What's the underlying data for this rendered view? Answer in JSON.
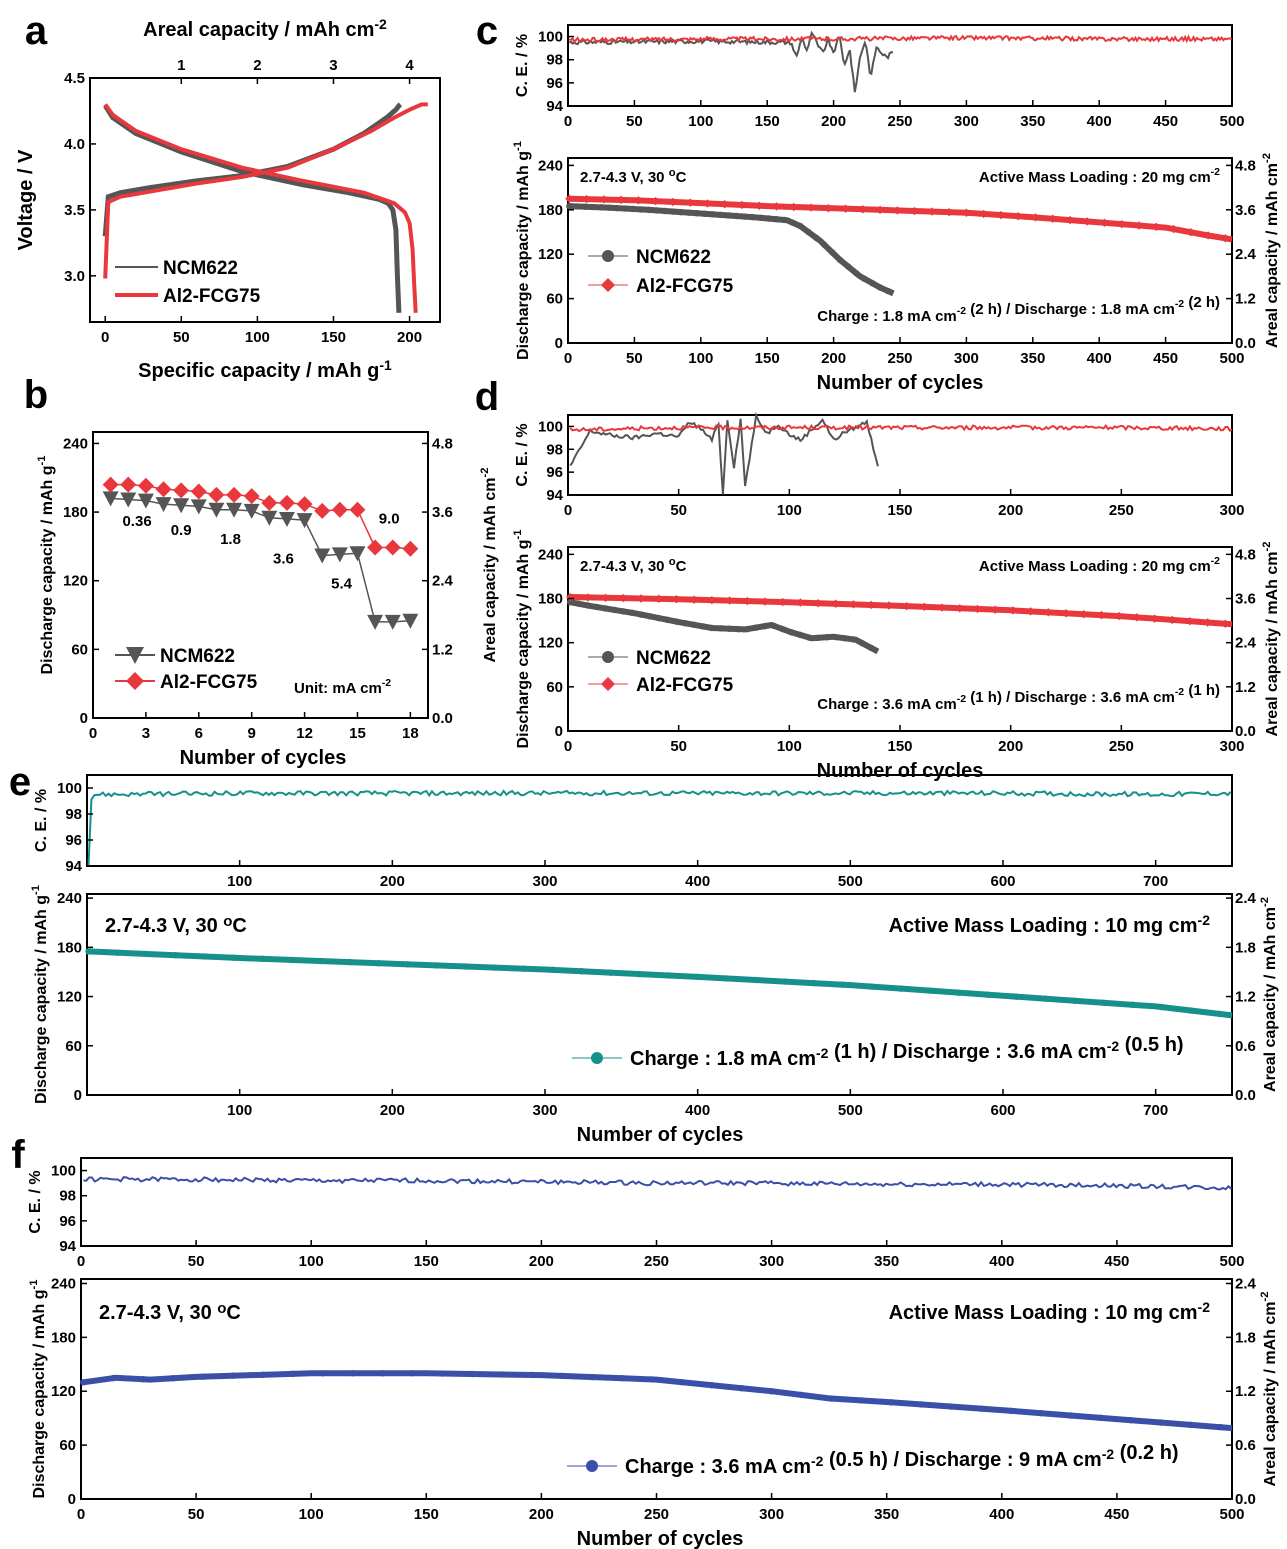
{
  "colors": {
    "ncm": "#555555",
    "al": "#e8383d",
    "teal": "#16908a",
    "blue": "#3a4fa8",
    "axis": "#000000"
  },
  "panels": {
    "a": "a",
    "b": "b",
    "c": "c",
    "d": "d",
    "e": "e",
    "f": "f"
  },
  "chart_data": [
    {
      "id": "a",
      "type": "line",
      "xlabel": "Specific capacity / mAh g-1",
      "x2label": "Areal capacity / mAh cm-2",
      "ylabel": "Voltage / V",
      "xlim": [
        -10,
        220
      ],
      "ylim": [
        2.65,
        4.5
      ],
      "x2lim": [
        -0.2,
        4.4
      ],
      "xticks": [
        0,
        50,
        100,
        150,
        200
      ],
      "yticks": [
        3.0,
        3.5,
        4.0,
        4.5
      ],
      "x2ticks": [
        1,
        2,
        3,
        4
      ],
      "legend": "bottom-left",
      "series": [
        {
          "name": "NCM622",
          "color": "ncm",
          "curves": [
            {
              "x": [
                0,
                2,
                10,
                30,
                60,
                90,
                120,
                150,
                170,
                185,
                191,
                193,
                194
              ],
              "y": [
                3.3,
                3.6,
                3.63,
                3.67,
                3.72,
                3.76,
                3.83,
                3.96,
                4.08,
                4.2,
                4.26,
                4.29,
                4.3
              ]
            },
            {
              "x": [
                0,
                5,
                20,
                50,
                90,
                130,
                160,
                180,
                186,
                189,
                191,
                192,
                193
              ],
              "y": [
                4.29,
                4.2,
                4.08,
                3.94,
                3.79,
                3.69,
                3.63,
                3.58,
                3.55,
                3.5,
                3.35,
                3.0,
                2.72
              ]
            }
          ]
        },
        {
          "name": "Al2-FCG75",
          "color": "al",
          "curves": [
            {
              "x": [
                0,
                2,
                10,
                30,
                60,
                90,
                120,
                150,
                175,
                190,
                200,
                208,
                212
              ],
              "y": [
                2.98,
                3.56,
                3.6,
                3.64,
                3.7,
                3.75,
                3.82,
                3.96,
                4.1,
                4.2,
                4.26,
                4.3,
                4.3
              ]
            },
            {
              "x": [
                0,
                5,
                20,
                50,
                90,
                130,
                170,
                190,
                197,
                200,
                202,
                203,
                204
              ],
              "y": [
                4.3,
                4.22,
                4.1,
                3.96,
                3.82,
                3.72,
                3.63,
                3.55,
                3.48,
                3.4,
                3.2,
                2.95,
                2.72
              ]
            }
          ]
        }
      ]
    },
    {
      "id": "b",
      "type": "line",
      "xlabel": "Number of cycles",
      "ylabel": "Discharge capacity / mAh g-1",
      "y2label": "Areal capacity / mAh cm-2",
      "xlim": [
        0,
        19
      ],
      "ylim": [
        0,
        250
      ],
      "y2lim": [
        0,
        5
      ],
      "xticks": [
        0,
        3,
        6,
        9,
        12,
        15,
        18
      ],
      "yticks": [
        0,
        60,
        120,
        180,
        240
      ],
      "y2ticks": [
        0.0,
        1.2,
        2.4,
        3.6,
        4.8
      ],
      "legend": "bottom-left",
      "unit_note": "Unit: mA cm-2",
      "rate_labels": [
        {
          "text": "0.36",
          "x": 2.5,
          "y": 168
        },
        {
          "text": "0.9",
          "x": 5,
          "y": 160
        },
        {
          "text": "1.8",
          "x": 7.8,
          "y": 152
        },
        {
          "text": "3.6",
          "x": 10.8,
          "y": 135
        },
        {
          "text": "5.4",
          "x": 14.1,
          "y": 113
        },
        {
          "text": "9.0",
          "x": 16.8,
          "y": 170
        }
      ],
      "series": [
        {
          "name": "NCM622",
          "color": "ncm",
          "marker": "triangle-down",
          "x": [
            1,
            2,
            3,
            4,
            5,
            6,
            7,
            8,
            9,
            10,
            11,
            12,
            13,
            14,
            15,
            16,
            17,
            18
          ],
          "y": [
            192,
            191,
            190,
            187,
            186,
            185,
            182,
            182,
            181,
            175,
            174,
            173,
            142,
            143,
            144,
            84,
            84,
            85
          ]
        },
        {
          "name": "Al2-FCG75",
          "color": "al",
          "marker": "diamond",
          "x": [
            1,
            2,
            3,
            4,
            5,
            6,
            7,
            8,
            9,
            10,
            11,
            12,
            13,
            14,
            15,
            16,
            17,
            18
          ],
          "y": [
            204,
            204,
            203,
            200,
            199,
            198,
            195,
            195,
            194,
            188,
            188,
            187,
            181,
            182,
            182,
            149,
            149,
            148
          ]
        }
      ]
    },
    {
      "id": "c",
      "type": "line",
      "xlabel": "Number of cycles",
      "ylabel": "Discharge capacity / mAh g-1",
      "y2label": "Areal capacity / mAh cm-2",
      "celabel": "C. E. / %",
      "xlim": [
        0,
        500
      ],
      "xticks": [
        0,
        50,
        100,
        150,
        200,
        250,
        300,
        350,
        400,
        450,
        500
      ],
      "ylim": [
        0,
        250
      ],
      "yticks": [
        0,
        60,
        120,
        180,
        240
      ],
      "y2ticks": [
        0.0,
        1.2,
        2.4,
        3.6,
        4.8
      ],
      "celim": [
        94,
        101
      ],
      "ceticks": [
        94,
        96,
        98,
        100
      ],
      "conditions": "2.7-4.3 V, 30 oC",
      "loading": "Active Mass Loading : 20 mg cm-2",
      "protocol": "Charge : 1.8 mA cm-2 (2 h) / Discharge : 1.8 mA cm-2 (2 h)",
      "legend": "center-left",
      "series": [
        {
          "name": "NCM622",
          "color": "ncm",
          "marker": "circle",
          "x": [
            1,
            30,
            60,
            100,
            140,
            165,
            175,
            190,
            205,
            220,
            235,
            245
          ],
          "y": [
            185,
            183,
            180,
            175,
            170,
            166,
            158,
            138,
            112,
            90,
            75,
            67
          ],
          "ce_x": [
            1,
            100,
            168,
            172,
            176,
            180,
            184,
            188,
            192,
            196,
            200,
            204,
            208,
            212,
            216,
            220,
            224,
            228,
            232,
            236,
            240,
            244
          ],
          "ce": [
            99.5,
            99.6,
            99.5,
            98.2,
            99.9,
            98.8,
            100.4,
            99.2,
            98.6,
            99.8,
            98.4,
            100.3,
            97.4,
            99.0,
            95.2,
            98.3,
            99.7,
            96.4,
            99.1,
            98.6,
            98.2,
            98.6
          ]
        },
        {
          "name": "Al2-FCG75",
          "color": "al",
          "marker": "diamond",
          "x": [
            1,
            50,
            100,
            150,
            200,
            250,
            300,
            350,
            400,
            450,
            480,
            500
          ],
          "y": [
            195,
            193,
            189,
            185,
            182,
            179,
            176,
            170,
            163,
            156,
            146,
            140
          ],
          "ce_x": [
            1,
            100,
            200,
            300,
            400,
            500
          ],
          "ce": [
            99.7,
            99.8,
            99.8,
            99.9,
            99.8,
            99.8
          ]
        }
      ]
    },
    {
      "id": "d",
      "type": "line",
      "xlabel": "Number of cycles",
      "ylabel": "Discharge capacity / mAh g-1",
      "y2label": "Areal capacity / mAh cm-2",
      "celabel": "C. E. / %",
      "xlim": [
        0,
        300
      ],
      "xticks": [
        0,
        50,
        100,
        150,
        200,
        250,
        300
      ],
      "ylim": [
        0,
        250
      ],
      "yticks": [
        0,
        60,
        120,
        180,
        240
      ],
      "y2ticks": [
        0.0,
        1.2,
        2.4,
        3.6,
        4.8
      ],
      "celim": [
        94,
        101
      ],
      "ceticks": [
        94,
        96,
        98,
        100
      ],
      "conditions": "2.7-4.3 V, 30 oC",
      "loading": "Active Mass Loading : 20 mg cm-2",
      "protocol": "Charge : 3.6 mA cm-2 (1 h) / Discharge : 3.6 mA cm-2 (1 h)",
      "legend": "center-left",
      "series": [
        {
          "name": "NCM622",
          "color": "ncm",
          "marker": "circle",
          "x": [
            1,
            10,
            30,
            50,
            65,
            80,
            92,
            100,
            110,
            120,
            130,
            140
          ],
          "y": [
            175,
            170,
            160,
            148,
            140,
            138,
            144,
            135,
            126,
            128,
            124,
            108
          ],
          "ce_x": [
            1,
            10,
            20,
            30,
            40,
            50,
            55,
            60,
            65,
            68,
            70,
            72,
            75,
            78,
            80,
            85,
            90,
            95,
            100,
            105,
            110,
            115,
            120,
            125,
            130,
            135,
            140,
            142
          ],
          "ce": [
            96.5,
            99.6,
            99.2,
            99.0,
            99.4,
            99.1,
            100.4,
            99.8,
            98.8,
            100.3,
            94.0,
            100.6,
            96.5,
            100.6,
            94.8,
            100.8,
            99.4,
            100.2,
            99.3,
            98.8,
            99.7,
            100.6,
            98.8,
            99.5,
            99.9,
            100.4,
            96.6,
            95.8
          ]
        },
        {
          "name": "Al2-FCG75",
          "color": "al",
          "marker": "diamond",
          "x": [
            1,
            50,
            100,
            150,
            200,
            250,
            300
          ],
          "y": [
            182,
            179,
            175,
            170,
            164,
            156,
            145
          ],
          "ce_x": [
            1,
            50,
            100,
            150,
            200,
            250,
            300
          ],
          "ce": [
            99.7,
            99.9,
            99.9,
            99.9,
            99.9,
            99.9,
            99.8
          ]
        }
      ]
    },
    {
      "id": "e",
      "type": "line",
      "xlabel": "Number of cycles",
      "ylabel": "Discharge capacity / mAh g-1",
      "y2label": "Areal capacity / mAh cm-2",
      "celabel": "C. E. / %",
      "xlim": [
        0,
        750
      ],
      "xticks": [
        100,
        200,
        300,
        400,
        500,
        600,
        700
      ],
      "ylim": [
        0,
        245
      ],
      "yticks": [
        0,
        60,
        120,
        180,
        240
      ],
      "y2ticks": [
        0.0,
        0.6,
        1.2,
        1.8,
        2.4
      ],
      "celim": [
        94,
        101
      ],
      "ceticks": [
        94,
        96,
        98,
        100
      ],
      "conditions": "2.7-4.3 V, 30 oC",
      "loading": "Active Mass Loading : 10 mg cm-2",
      "legend": "bottom-right",
      "series": [
        {
          "name": "Charge : 1.8 mA cm-2 (1 h) / Discharge : 3.6 mA cm-2 (0.5 h)",
          "color": "teal",
          "marker": "circle",
          "x": [
            1,
            100,
            200,
            300,
            400,
            500,
            600,
            700,
            750
          ],
          "y": [
            175,
            167,
            160,
            153,
            144,
            134,
            121,
            108,
            97
          ],
          "ce_x": [
            1,
            3,
            100,
            200,
            300,
            400,
            500,
            600,
            700,
            750
          ],
          "ce": [
            94.2,
            99.5,
            99.6,
            99.6,
            99.6,
            99.6,
            99.6,
            99.6,
            99.5,
            99.6
          ]
        }
      ]
    },
    {
      "id": "f",
      "type": "line",
      "xlabel": "Number of cycles",
      "ylabel": "Discharge capacity / mAh g-1",
      "y2label": "Areal capacity / mAh cm-2",
      "celabel": "C. E. / %",
      "xlim": [
        0,
        500
      ],
      "xticks": [
        0,
        50,
        100,
        150,
        200,
        250,
        300,
        350,
        400,
        450,
        500
      ],
      "ylim": [
        0,
        245
      ],
      "yticks": [
        0,
        60,
        120,
        180,
        240
      ],
      "y2ticks": [
        0.0,
        0.6,
        1.2,
        1.8,
        2.4
      ],
      "celim": [
        94,
        101
      ],
      "ceticks": [
        94,
        96,
        98,
        100
      ],
      "conditions": "2.7-4.3 V, 30 oC",
      "loading": "Active Mass Loading : 10 mg cm-2",
      "legend": "bottom-right",
      "series": [
        {
          "name": "Charge : 3.6 mA cm-2 (0.5 h) / Discharge : 9 mA cm-2 (0.2 h)",
          "color": "blue",
          "marker": "circle",
          "x": [
            1,
            15,
            30,
            50,
            100,
            150,
            200,
            250,
            300,
            325,
            350,
            400,
            450,
            500
          ],
          "y": [
            130,
            135,
            133,
            136,
            140,
            140,
            138,
            133,
            120,
            112,
            108,
            99,
            89,
            79
          ],
          "ce_x": [
            1,
            50,
            100,
            150,
            200,
            250,
            300,
            350,
            400,
            450,
            500
          ],
          "ce": [
            99.3,
            99.3,
            99.2,
            99.2,
            99.1,
            99.0,
            99.0,
            98.9,
            98.9,
            98.8,
            98.6
          ]
        }
      ]
    }
  ]
}
